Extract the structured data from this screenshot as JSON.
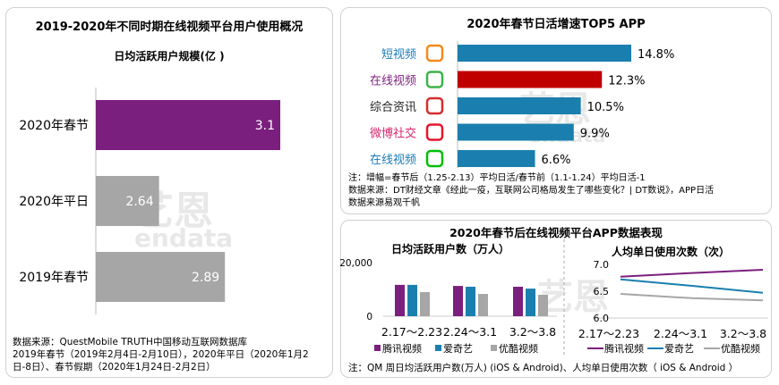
{
  "left": {
    "title": "2019-2020年不同时期在线视频平台用户使用概况",
    "subtitle": "日均活跃用户规模(亿 )",
    "source_lines": [
      "数据来源：QuestMobile TRUTH中国移动互联网数据库",
      "2019年春节（2019年2月4日-2月10日），2020年平日（2020年1月2",
      "日-8日）、春节假期（2020年1月24日-2月2日）"
    ]
  },
  "top_right": {
    "title": "2020年春节日活增速TOP5 APP",
    "notes": [
      "注：增幅=春节后（1.25-2.13）平均日活/春节前（1.1-1.24）平均日活-1",
      "数据来源：DT财经文章《经此一疫，互联网公司格局发生了哪些变化？| DT数说》，APP日活",
      "数据来源易观千帆"
    ]
  },
  "bottom_right": {
    "title": "2020年春节后在线视频平台APP数据表现",
    "note": "注：QM 周日均活跃用户数(万人) (iOS & Android)、人均单日使用次数（ iOS & Android ）"
  },
  "watermark": {
    "cn": "艺恩",
    "en": "endata"
  },
  "chart_data": [
    {
      "type": "bar",
      "orientation": "horizontal",
      "title": "2019-2020年不同时期在线视频平台用户使用概况",
      "subtitle": "日均活跃用户规模(亿 )",
      "categories": [
        "2020年春节",
        "2020年平日",
        "2019年春节"
      ],
      "values": [
        3.1,
        2.64,
        2.89
      ],
      "labels": [
        "3.1",
        "2.64",
        "2.89"
      ],
      "colors": [
        "#7b1f7e",
        "#a6a6a6",
        "#a6a6a6"
      ],
      "xlim": [
        2.4,
        3.1
      ]
    },
    {
      "type": "bar",
      "orientation": "horizontal",
      "title": "2020年春节日活增速TOP5 APP",
      "categories": [
        "短视频",
        "在线视频",
        "综合资讯",
        "微博社交",
        "在线视频"
      ],
      "category_colors": [
        "#1a7cb8",
        "#7b1f7e",
        "#222222",
        "#d6246e",
        "#1a7cb8"
      ],
      "icons": [
        "kuaishou-icon",
        "tencent-video-icon",
        "toutiao-icon",
        "weibo-icon",
        "iqiyi-icon"
      ],
      "values": [
        14.8,
        12.3,
        10.5,
        9.9,
        6.6
      ],
      "labels": [
        "14.8%",
        "12.3%",
        "10.5%",
        "9.9%",
        "6.6%"
      ],
      "colors": [
        "#1a7fae",
        "#c00000",
        "#1a7fae",
        "#1a7fae",
        "#1a7fae"
      ]
    },
    {
      "type": "bar",
      "title": "日均活跃用户数（万人）",
      "categories": [
        "2.17～2.23",
        "2.24～3.1",
        "3.2～3.8"
      ],
      "yticks": [
        "0",
        "20,000"
      ],
      "ylim": [
        0,
        20000
      ],
      "series": [
        {
          "name": "腾讯视频",
          "color": "#7b1f7e",
          "values": [
            11700,
            11300,
            11000
          ]
        },
        {
          "name": "爱奇艺",
          "color": "#1a7fae",
          "values": [
            11700,
            11000,
            10300
          ]
        },
        {
          "name": "优酷视频",
          "color": "#a6a6a6",
          "values": [
            9000,
            8300,
            8000
          ]
        }
      ]
    },
    {
      "type": "line",
      "title": "人均单日使用次数（次）",
      "categories": [
        "2.17～2.23",
        "2.24～3.1",
        "3.2～3.8"
      ],
      "yticks": [
        "6.0",
        "6.5",
        "7.0"
      ],
      "ylim": [
        6.0,
        7.0
      ],
      "series": [
        {
          "name": "腾讯视频",
          "color": "#7b1f7e",
          "values": [
            6.77,
            6.84,
            6.9
          ]
        },
        {
          "name": "爱奇艺",
          "color": "#1a7fae",
          "values": [
            6.72,
            6.6,
            6.47
          ]
        },
        {
          "name": "优酷视频",
          "color": "#a6a6a6",
          "values": [
            6.45,
            6.37,
            6.33
          ]
        }
      ]
    }
  ]
}
